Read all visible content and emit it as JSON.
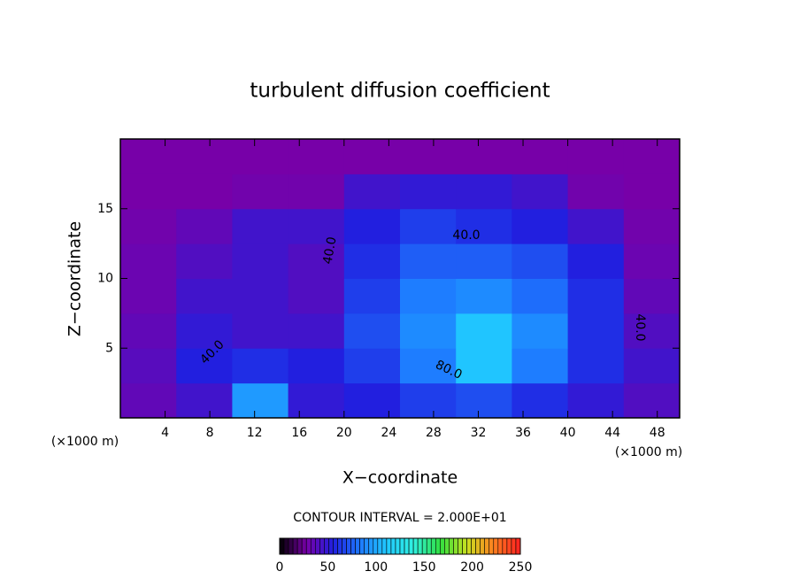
{
  "chart_data": {
    "type": "heatmap",
    "title": "turbulent diffusion coefficient",
    "x_label": "X−coordinate",
    "y_label": "Z−coordinate",
    "x_unit_labels": [
      "(×1000 m)",
      "(×1000 m)"
    ],
    "contour_interval_text": "CONTOUR INTERVAL = 2.000E+01",
    "contour_labels": [
      "40.0",
      "40.0",
      "40.0",
      "80.0",
      "40.0"
    ],
    "xbins": [
      0,
      5,
      10,
      15,
      20,
      25,
      30,
      35,
      40,
      45,
      50
    ],
    "ybins": [
      0,
      2.5,
      5,
      7.5,
      10,
      12.5,
      15,
      17.5,
      20
    ],
    "z": [
      [
        35,
        45,
        95,
        50,
        55,
        65,
        70,
        60,
        50,
        40
      ],
      [
        38,
        55,
        60,
        55,
        65,
        85,
        110,
        85,
        60,
        45
      ],
      [
        35,
        50,
        45,
        45,
        70,
        90,
        110,
        90,
        60,
        40
      ],
      [
        32,
        45,
        45,
        40,
        65,
        85,
        90,
        80,
        60,
        35
      ],
      [
        32,
        40,
        45,
        40,
        60,
        75,
        75,
        70,
        55,
        32
      ],
      [
        30,
        35,
        45,
        45,
        55,
        65,
        60,
        55,
        45,
        30
      ],
      [
        28,
        28,
        30,
        30,
        45,
        50,
        50,
        45,
        30,
        28
      ],
      [
        28,
        28,
        28,
        28,
        28,
        28,
        28,
        28,
        28,
        28
      ]
    ],
    "xlim": [
      0,
      50
    ],
    "ylim": [
      0,
      20
    ],
    "xticks": [
      4,
      8,
      12,
      16,
      20,
      24,
      28,
      32,
      36,
      40,
      44,
      48
    ],
    "yticks": [
      5,
      10,
      15
    ],
    "clim": [
      0,
      250
    ],
    "cticks": [
      0,
      50,
      100,
      150,
      200,
      250
    ],
    "colorscale": [
      "#000000",
      "#7800a8",
      "#2020e0",
      "#1e78ff",
      "#20c8ff",
      "#30f0e0",
      "#30e040",
      "#c8e020",
      "#ff8020",
      "#ff2020"
    ]
  }
}
